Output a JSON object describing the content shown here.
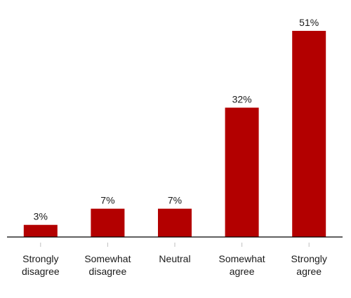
{
  "chart_data": {
    "type": "bar",
    "categories": [
      [
        "Strongly",
        "disagree"
      ],
      [
        "Somewhat",
        "disagree"
      ],
      [
        "Neutral"
      ],
      [
        "Somewhat",
        "agree"
      ],
      [
        "Strongly",
        "agree"
      ]
    ],
    "values": [
      3,
      7,
      7,
      32,
      51
    ],
    "value_labels": [
      "3%",
      "7%",
      "7%",
      "32%",
      "51%"
    ],
    "ylim": [
      0,
      51
    ],
    "grid": false,
    "bar_color": "#b30000",
    "axis_color": "#000000",
    "tick_color": "#bfbfbf"
  }
}
